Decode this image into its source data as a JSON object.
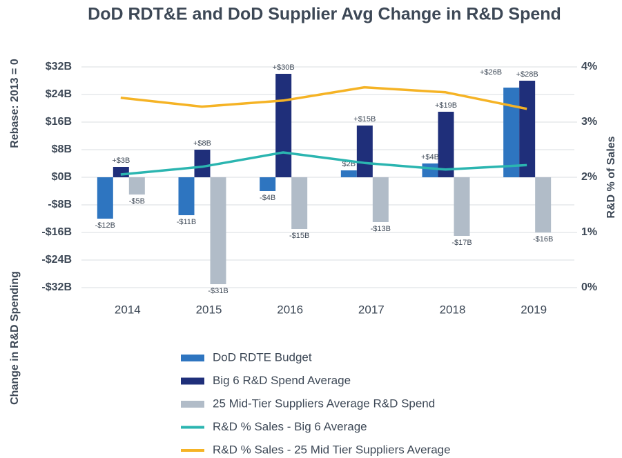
{
  "chart_data": {
    "type": "bar",
    "title": "DoD RDT&E and DoD Supplier Avg Change in R&D Spend",
    "y_label_top": "Rebase: 2013 = 0",
    "y_label_bottom": "Change in R&D Spending",
    "y2_label": "R&D % of Sales",
    "categories": [
      "2014",
      "2015",
      "2016",
      "2017",
      "2018",
      "2019"
    ],
    "ylim": [
      -32,
      32
    ],
    "yticks": [
      {
        "value": 32,
        "label": "$32B"
      },
      {
        "value": 24,
        "label": "$24B"
      },
      {
        "value": 16,
        "label": "$16B"
      },
      {
        "value": 8,
        "label": "$8B"
      },
      {
        "value": 0,
        "label": "$0B"
      },
      {
        "value": -8,
        "label": "-$8B"
      },
      {
        "value": -16,
        "label": "-$16B"
      },
      {
        "value": -24,
        "label": "-$24B"
      },
      {
        "value": -32,
        "label": "-$32B"
      }
    ],
    "y2lim": [
      0,
      4
    ],
    "y2ticks": [
      {
        "value": 4,
        "label": "4%"
      },
      {
        "value": 3,
        "label": "3%"
      },
      {
        "value": 2,
        "label": "2%"
      },
      {
        "value": 1,
        "label": "1%"
      },
      {
        "value": 0,
        "label": "0%"
      }
    ],
    "grid": true,
    "series": [
      {
        "name": "DoD RDTE Budget",
        "type": "bar",
        "color": "#2e75c0",
        "values": [
          -12,
          -11,
          -4,
          2,
          4,
          26
        ],
        "value_labels": [
          "-$12B",
          "-$11B",
          "-$4B",
          "$2B",
          "+$4B",
          "+$26B"
        ]
      },
      {
        "name": "Big 6 R&D Spend Average",
        "type": "bar",
        "color": "#1f2f7a",
        "values": [
          3,
          8,
          30,
          15,
          19,
          28
        ],
        "value_labels": [
          "+$3B",
          "+$8B",
          "+$30B",
          "+$15B",
          "+$19B",
          "+$28B"
        ]
      },
      {
        "name": "25 Mid-Tier Suppliers Average R&D Spend",
        "type": "bar",
        "color": "#b1bcc8",
        "values": [
          -5,
          -31,
          -15,
          -13,
          -17,
          -16
        ],
        "value_labels": [
          "-$5B",
          "-$31B",
          "-$15B",
          "-$13B",
          "-$17B",
          "-$16B"
        ]
      },
      {
        "name": "R&D % Sales - Big 6 Average",
        "type": "line",
        "axis": "y2",
        "color": "#2bb5b0",
        "values": [
          2.05,
          2.19,
          2.45,
          2.26,
          2.14,
          2.22
        ]
      },
      {
        "name": "R&D % Sales - 25 Mid Tier Suppliers Average",
        "type": "line",
        "axis": "y2",
        "color": "#f5b325",
        "values": [
          3.44,
          3.28,
          3.39,
          3.63,
          3.54,
          3.24
        ]
      }
    ]
  }
}
